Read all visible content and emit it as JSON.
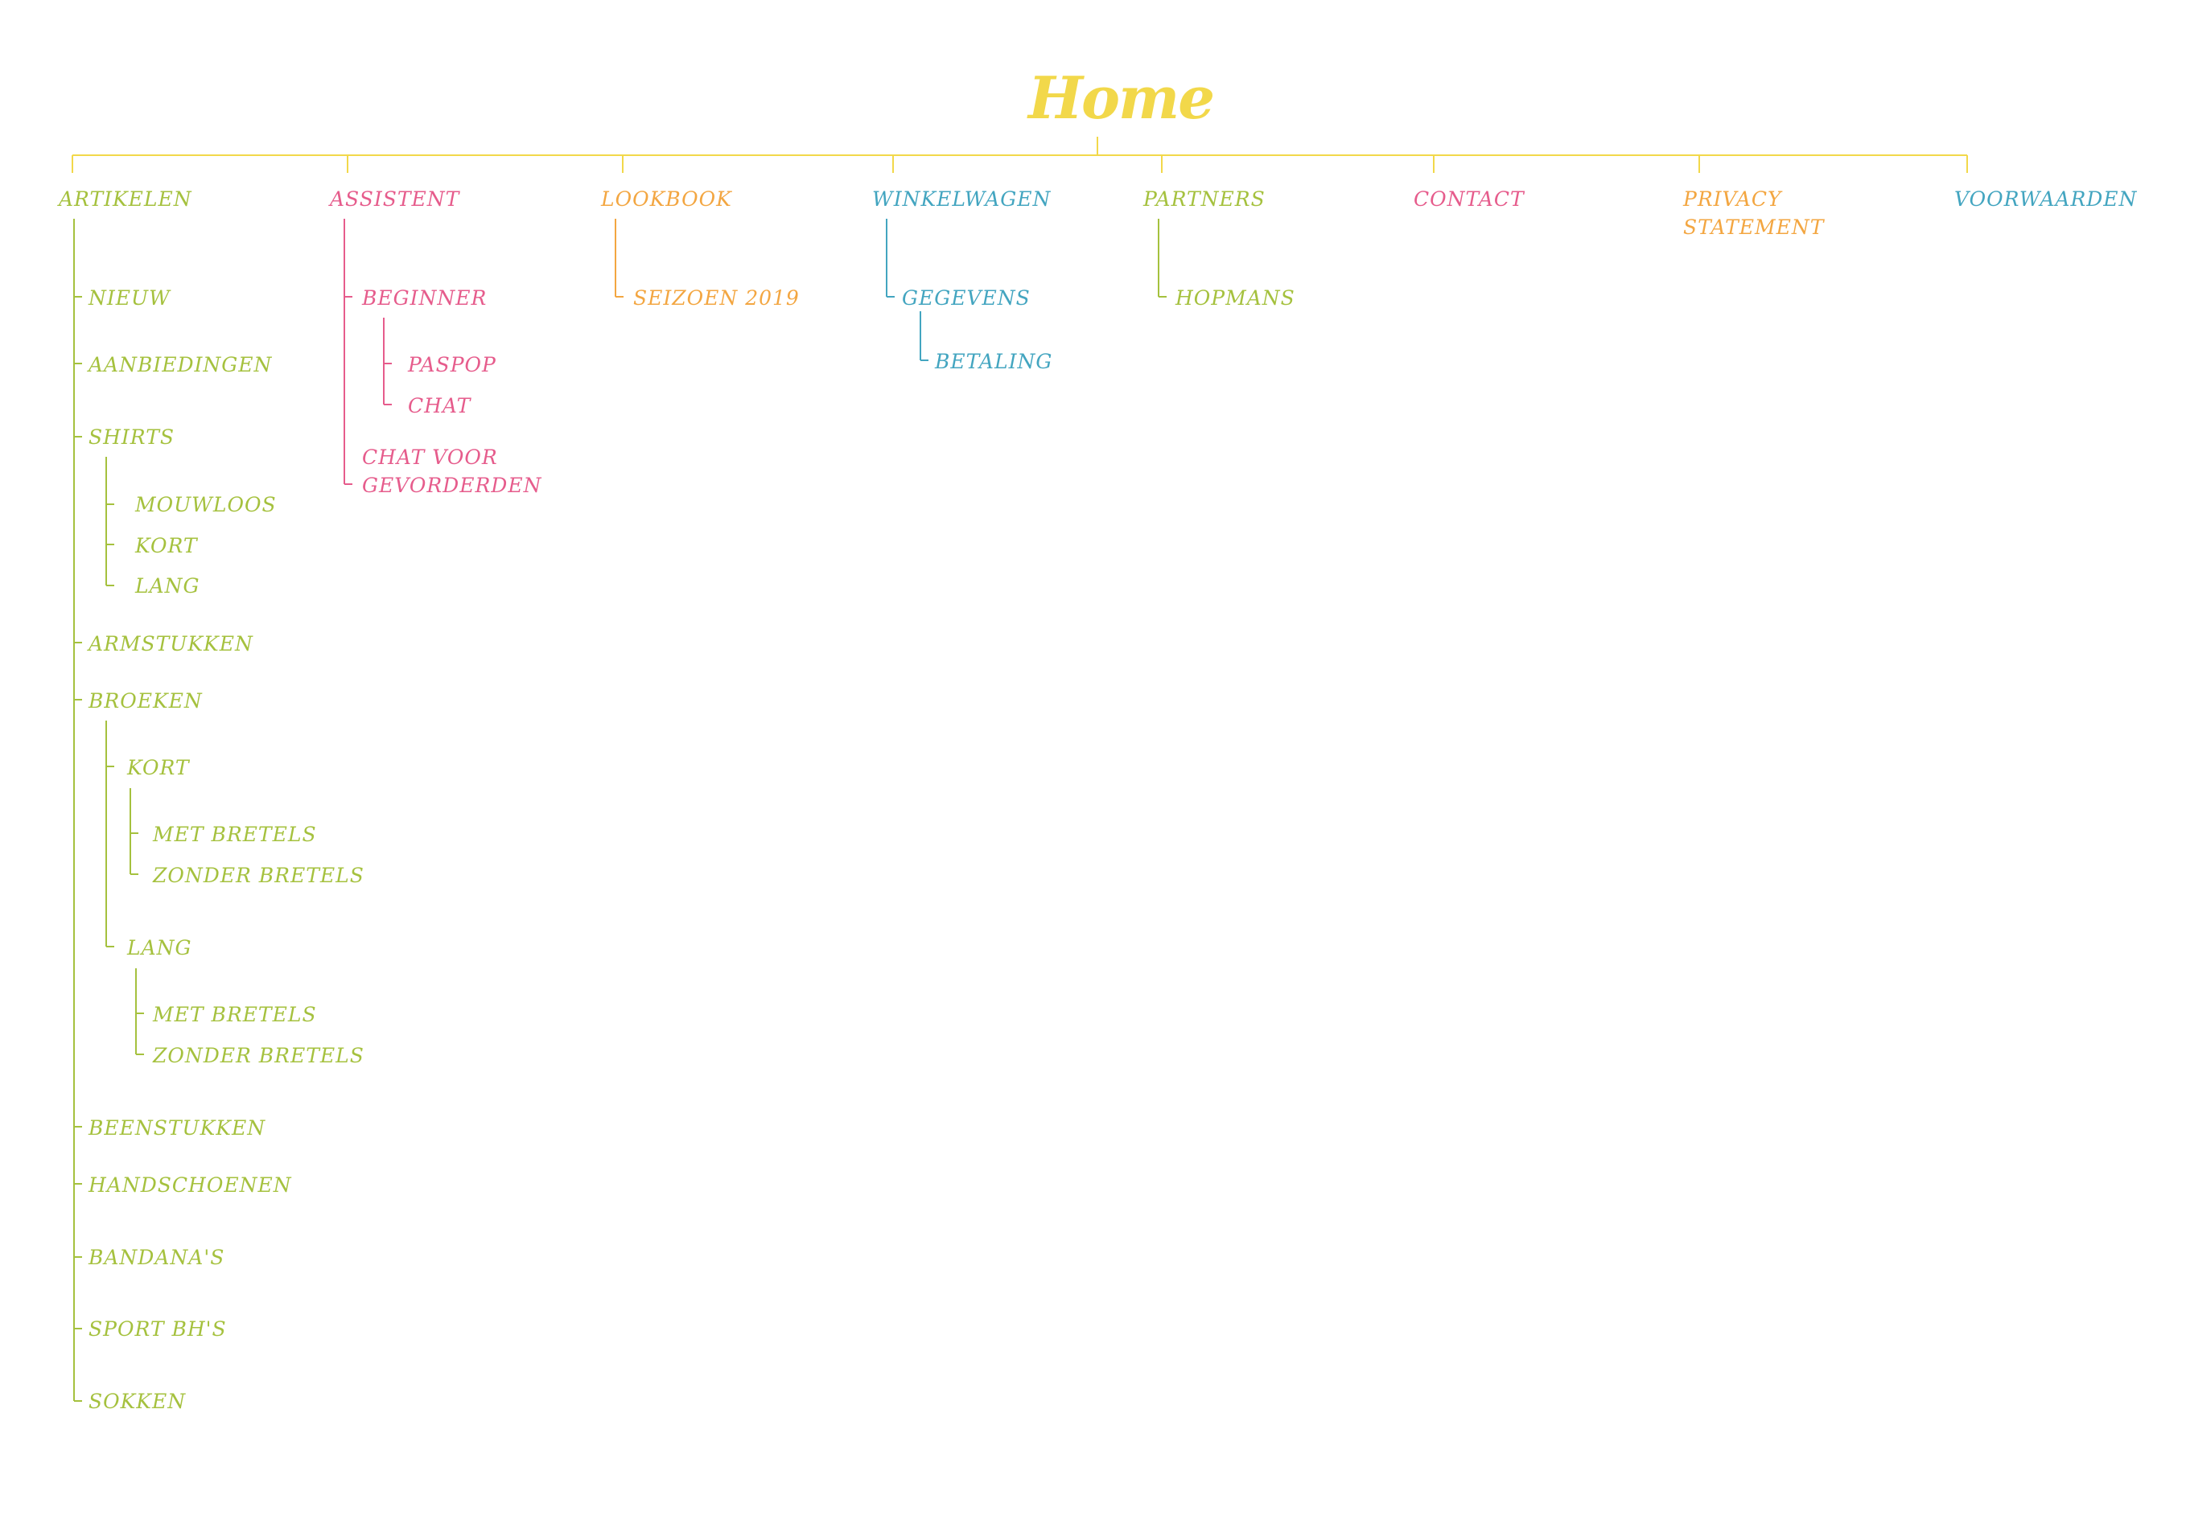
{
  "colors": {
    "home": "#f2d84a",
    "lime": "#a5c13e",
    "pink": "#e65c8c",
    "orange": "#f3a641",
    "blue": "#43a5c0"
  },
  "home": {
    "label": "Home"
  },
  "sections": [
    {
      "id": "artikelen",
      "label": "ARTIKELEN",
      "color": "lime",
      "children": [
        {
          "label": "NIEUW"
        },
        {
          "label": "AANBIEDINGEN"
        },
        {
          "label": "SHIRTS",
          "children": [
            {
              "label": "MOUWLOOS"
            },
            {
              "label": "KORT"
            },
            {
              "label": "LANG"
            }
          ]
        },
        {
          "label": "ARMSTUKKEN"
        },
        {
          "label": "BROEKEN",
          "children": [
            {
              "label": "KORT",
              "children": [
                {
                  "label": "MET BRETELS"
                },
                {
                  "label": "ZONDER BRETELS"
                }
              ]
            },
            {
              "label": "LANG",
              "children": [
                {
                  "label": "MET BRETELS"
                },
                {
                  "label": "ZONDER BRETELS"
                }
              ]
            }
          ]
        },
        {
          "label": "BEENSTUKKEN"
        },
        {
          "label": "HANDSCHOENEN"
        },
        {
          "label": "BANDANA'S"
        },
        {
          "label": "SPORT BH'S"
        },
        {
          "label": "SOKKEN"
        }
      ]
    },
    {
      "id": "assistent",
      "label": "ASSISTENT",
      "color": "pink",
      "children": [
        {
          "label": "BEGINNER",
          "children": [
            {
              "label": "PASPOP"
            },
            {
              "label": "CHAT"
            }
          ]
        },
        {
          "label": "CHAT VOOR\nGEVORDERDEN"
        }
      ]
    },
    {
      "id": "lookbook",
      "label": "LOOKBOOK",
      "color": "orange",
      "children": [
        {
          "label": "SEIZOEN 2019"
        }
      ]
    },
    {
      "id": "winkelwagen",
      "label": "WINKELWAGEN",
      "color": "blue",
      "children": [
        {
          "label": "GEGEVENS",
          "children": [
            {
              "label": "BETALING"
            }
          ]
        }
      ]
    },
    {
      "id": "partners",
      "label": "PARTNERS",
      "color": "lime",
      "children": [
        {
          "label": "HOPMANS"
        }
      ]
    },
    {
      "id": "contact",
      "label": "CONTACT",
      "color": "pink",
      "children": []
    },
    {
      "id": "privacy",
      "label": "PRIVACY\nSTATEMENT",
      "color": "orange",
      "children": []
    },
    {
      "id": "voorwaarden",
      "label": "VOORWAARDEN",
      "color": "blue",
      "children": []
    }
  ]
}
